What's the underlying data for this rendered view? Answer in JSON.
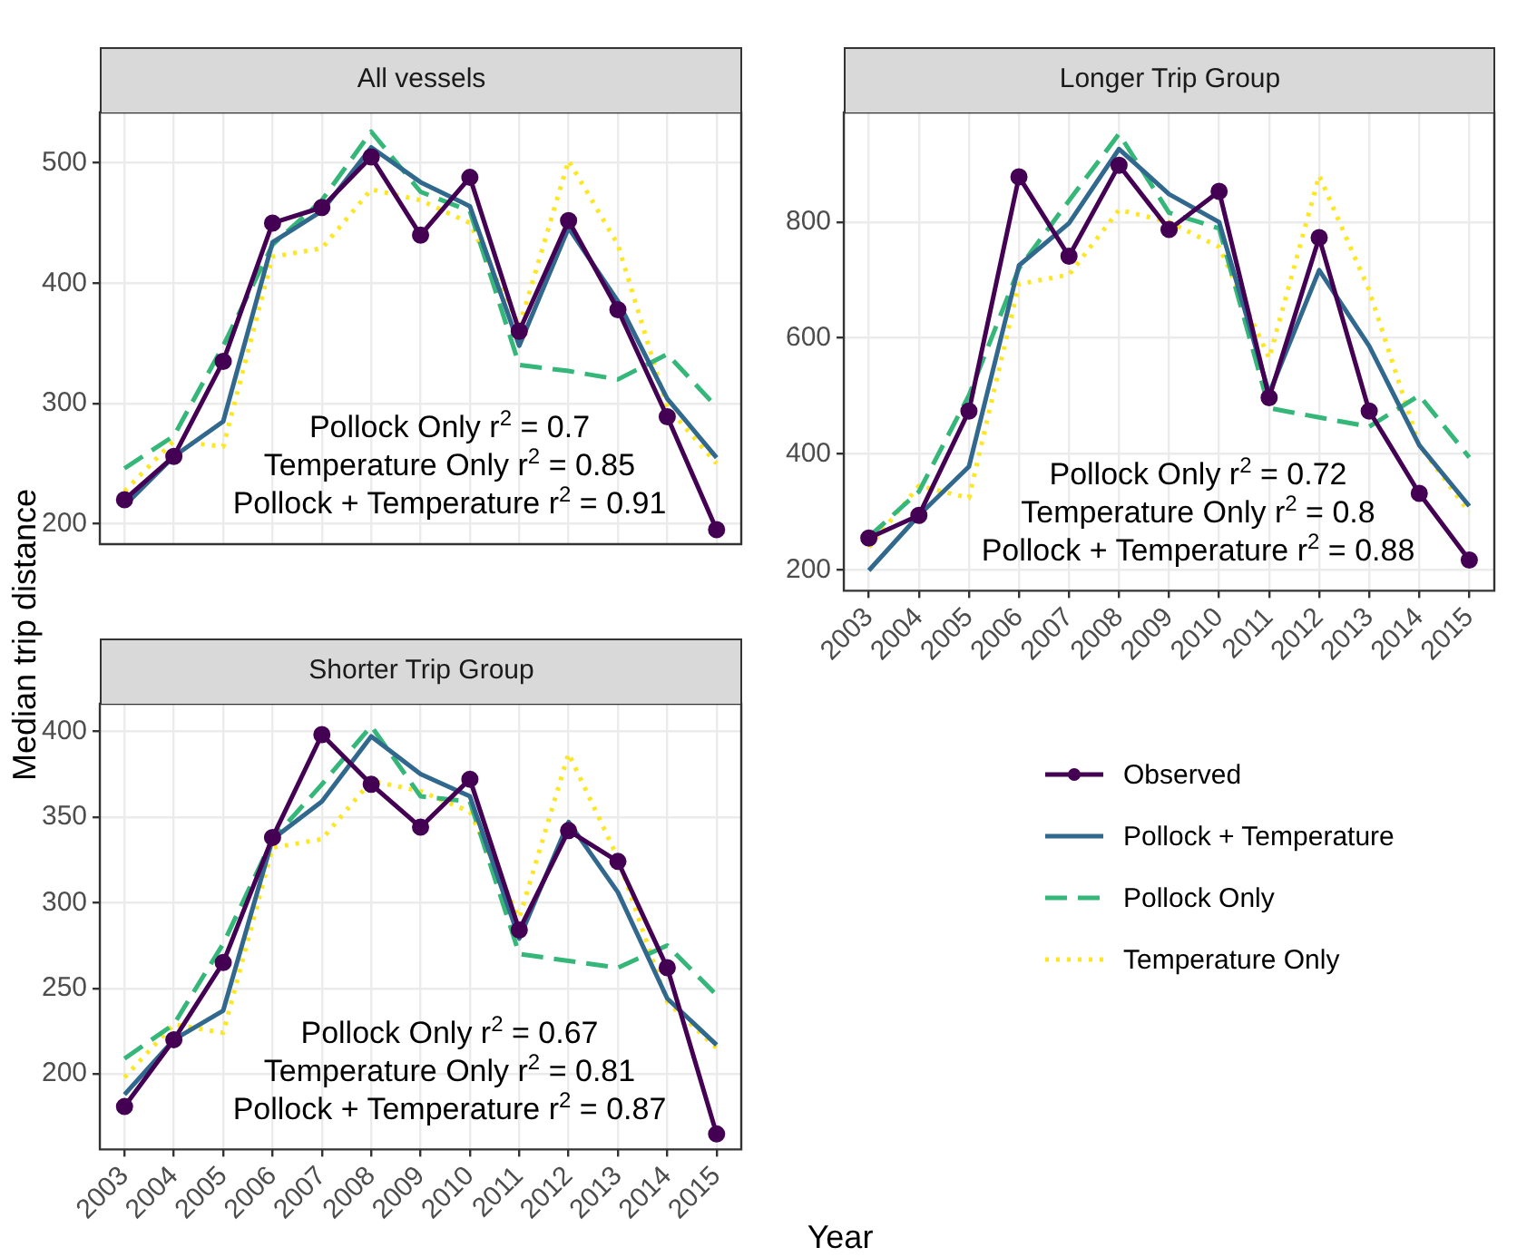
{
  "chart_data": [
    {
      "type": "line",
      "title": "All vessels",
      "categories": [
        "2003",
        "2004",
        "2005",
        "2006",
        "2007",
        "2008",
        "2009",
        "2010",
        "2011",
        "2012",
        "2013",
        "2014",
        "2015"
      ],
      "series": [
        {
          "color": "#440154",
          "marker": "circle",
          "line_style": "solid",
          "values": [
            220,
            256,
            335,
            450,
            463,
            505,
            440,
            488,
            360,
            452,
            378,
            289,
            195
          ]
        },
        {
          "color": "#31688e",
          "marker": "none",
          "line_style": "solid",
          "values": [
            215,
            256,
            285,
            434,
            460,
            513,
            484,
            464,
            348,
            446,
            385,
            304,
            255
          ]
        },
        {
          "color": "#35b779",
          "marker": "none",
          "line_style": "dashed",
          "values": [
            246,
            273,
            348,
            432,
            469,
            526,
            476,
            460,
            332,
            327,
            320,
            341,
            297
          ]
        },
        {
          "color": "#fde725",
          "marker": "none",
          "line_style": "dotted",
          "values": [
            227,
            269,
            264,
            422,
            429,
            478,
            469,
            450,
            364,
            502,
            432,
            297,
            250
          ]
        }
      ],
      "ylim": [
        183,
        542
      ],
      "yticks": [
        200,
        300,
        400,
        500
      ],
      "grid": true,
      "tick_labels": "y",
      "annotations": [
        "Pollock Only r$^{2}$ = 0.7",
        "Temperature Only r$^{2}$ = 0.85",
        "Pollock + Temperature r$^{2}$ = 0.91"
      ]
    },
    {
      "type": "line",
      "title": "Longer Trip Group",
      "categories": [
        "2003",
        "2004",
        "2005",
        "2006",
        "2007",
        "2008",
        "2009",
        "2010",
        "2011",
        "2012",
        "2013",
        "2014",
        "2015"
      ],
      "series": [
        {
          "color": "#440154",
          "marker": "circle",
          "line_style": "solid",
          "values": [
            255,
            294,
            474,
            878,
            741,
            898,
            787,
            853,
            497,
            773,
            474,
            332,
            217
          ]
        },
        {
          "color": "#31688e",
          "marker": "none",
          "line_style": "solid",
          "values": [
            199,
            294,
            378,
            725,
            798,
            926,
            848,
            800,
            504,
            717,
            586,
            415,
            310
          ]
        },
        {
          "color": "#35b779",
          "marker": "none",
          "line_style": "dashed",
          "values": [
            257,
            335,
            501,
            720,
            837,
            952,
            816,
            789,
            479,
            463,
            447,
            501,
            394
          ]
        },
        {
          "color": "#fde725",
          "marker": "none",
          "line_style": "dotted",
          "values": [
            239,
            345,
            324,
            693,
            709,
            821,
            800,
            757,
            565,
            880,
            682,
            415,
            299
          ]
        }
      ],
      "ylim": [
        164,
        989
      ],
      "yticks": [
        200,
        400,
        600,
        800
      ],
      "grid": true,
      "annotations": [
        "Pollock Only r$^{2}$ = 0.72",
        "Temperature Only r$^{2}$ = 0.8",
        "Pollock + Temperature r$^{2}$ = 0.88"
      ]
    },
    {
      "type": "line",
      "title": "Shorter Trip Group",
      "categories": [
        "2003",
        "2004",
        "2005",
        "2006",
        "2007",
        "2008",
        "2009",
        "2010",
        "2011",
        "2012",
        "2013",
        "2014",
        "2015"
      ],
      "series": [
        {
          "name": "Observed",
          "color": "#440154",
          "marker": "circle",
          "line_style": "solid",
          "values": [
            181,
            220,
            265,
            338,
            398,
            369,
            344,
            372,
            284,
            342,
            324,
            262,
            165
          ]
        },
        {
          "name": "Pollock + Temperature",
          "color": "#31688e",
          "marker": "none",
          "line_style": "solid",
          "values": [
            188,
            220,
            237,
            337,
            359,
            397,
            375,
            362,
            279,
            347,
            306,
            244,
            217
          ]
        },
        {
          "name": "Pollock Only",
          "color": "#35b779",
          "marker": "none",
          "line_style": "dashed",
          "values": [
            209,
            229,
            276,
            337,
            369,
            403,
            362,
            359,
            270,
            266,
            262,
            275,
            246
          ]
        },
        {
          "name": "Temperature Only",
          "color": "#fde725",
          "marker": "none",
          "line_style": "dotted",
          "values": [
            198,
            229,
            224,
            332,
            337,
            371,
            365,
            353,
            291,
            387,
            326,
            242,
            215
          ]
        }
      ],
      "ylim": [
        156,
        416
      ],
      "yticks": [
        200,
        250,
        300,
        350,
        400
      ],
      "grid": true,
      "xlabel": "Year",
      "ylabel": "Median trip distance",
      "legend": "right",
      "annotations": [
        "Pollock Only r$^{2}$ = 0.67",
        "Temperature Only r$^{2}$ = 0.81",
        "Pollock + Temperature r$^{2}$ = 0.87"
      ]
    }
  ]
}
